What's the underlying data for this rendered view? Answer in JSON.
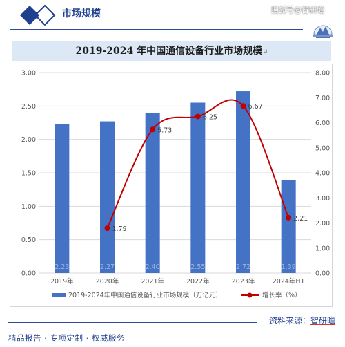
{
  "header": {
    "title": "市场规模",
    "watermark": "搜狐号@智研瞻"
  },
  "chart_title": "2019-2024 年中国通信设备行业市场规模",
  "source": {
    "label": "资料来源：",
    "value": "智研瞻"
  },
  "tagline": [
    "精品报告",
    "专项定制",
    "权威服务"
  ],
  "colors": {
    "bar": "#4472c4",
    "line": "#c00000",
    "accent": "#1f3f8f"
  },
  "chart_data": {
    "type": "bar",
    "title": "2019-2024 年中国通信设备行业市场规模",
    "categories": [
      "2019年",
      "2020年",
      "2021年",
      "2022年",
      "2023年",
      "2024年H1"
    ],
    "series": [
      {
        "name": "2019-2024年中国通信设备行业市场规模（万亿元）",
        "type": "bar",
        "axis": "left",
        "values": [
          2.23,
          2.27,
          2.4,
          2.55,
          2.72,
          1.39
        ],
        "labels": [
          "2.23",
          "2.27",
          "2.40",
          "2.55",
          "2.72",
          "1.39"
        ]
      },
      {
        "name": "增长率（%）",
        "type": "line",
        "axis": "right",
        "values": [
          null,
          1.79,
          5.73,
          6.25,
          6.67,
          2.21
        ],
        "labels": [
          "",
          "1.79",
          "5.73",
          "6.25",
          "6.67",
          "2.21"
        ]
      }
    ],
    "y_left": {
      "min": 0,
      "max": 3,
      "step": 0.5,
      "tick_labels": [
        "0.00",
        "0.50",
        "1.00",
        "1.50",
        "2.00",
        "2.50",
        "3.00"
      ]
    },
    "y_right": {
      "min": 0,
      "max": 8,
      "step": 1,
      "tick_labels": [
        "0.00",
        "1.00",
        "2.00",
        "3.00",
        "4.00",
        "5.00",
        "6.00",
        "7.00",
        "8.00"
      ]
    },
    "grid": true,
    "legend": "bottom"
  }
}
